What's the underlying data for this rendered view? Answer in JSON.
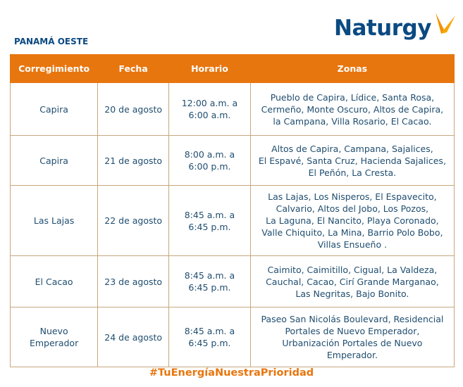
{
  "region": "PANAMÁ OESTE",
  "logo": {
    "text": "Naturgy",
    "color": "#0b4a82",
    "accent": "#f39200"
  },
  "headers": [
    "Corregimiento",
    "Fecha",
    "Horario",
    "Zonas"
  ],
  "rows": [
    {
      "corregimiento": [
        "Capira"
      ],
      "fecha": "20 de agosto",
      "horario": [
        "12:00 a.m. a",
        "6:00 a.m."
      ],
      "zonas": [
        "Pueblo de Capira, Lídice, Santa Rosa,",
        "Cermeño, Monte Oscuro, Altos de Capira,",
        "la Campana, Villa Rosario, El Cacao."
      ]
    },
    {
      "corregimiento": [
        "Capira"
      ],
      "fecha": "21 de agosto",
      "horario": [
        "8:00 a.m. a",
        "6:00 p.m."
      ],
      "zonas": [
        "Altos de Capira, Campana, Sajalices,",
        "El Espavé, Santa Cruz, Hacienda Sajalices,",
        "El Peñón, La Cresta."
      ]
    },
    {
      "corregimiento": [
        "Las Lajas"
      ],
      "fecha": "22 de agosto",
      "horario": [
        "8:45 a.m. a",
        "6:45 p.m."
      ],
      "zonas": [
        "Las Lajas, Los Nisperos, El Espavecito,",
        "Calvario, Altos del Jobo, Los Pozos,",
        "La Laguna, El Nancito, Playa Coronado,",
        "Valle Chiquito, La Mina, Barrio Polo Bobo,",
        "Villas Ensueño ."
      ]
    },
    {
      "corregimiento": [
        "El Cacao"
      ],
      "fecha": "23 de agosto",
      "horario": [
        "8:45 a.m. a",
        "6:45 p.m."
      ],
      "zonas": [
        "Caimito, Caimitillo, Cigual, La Valdeza,",
        "Cauchal, Cacao, Cirí Grande Marganao,",
        "Las Negritas, Bajo Bonito."
      ]
    },
    {
      "corregimiento": [
        "Nuevo",
        "Emperador"
      ],
      "fecha": "24 de agosto",
      "horario": [
        "8:45 a.m. a",
        "6:45 p.m."
      ],
      "zonas": [
        "Paseo San Nicolás Boulevard, Residencial",
        "Portales de Nuevo Emperador,",
        "Urbanización Portales de Nuevo",
        "Emperador."
      ]
    }
  ],
  "hashtag": "#TuEnergíaNuestraPrioridad",
  "colors": {
    "header_bg": "#e8760e",
    "border": "#c7a77e",
    "text": "#1f4d6f"
  }
}
